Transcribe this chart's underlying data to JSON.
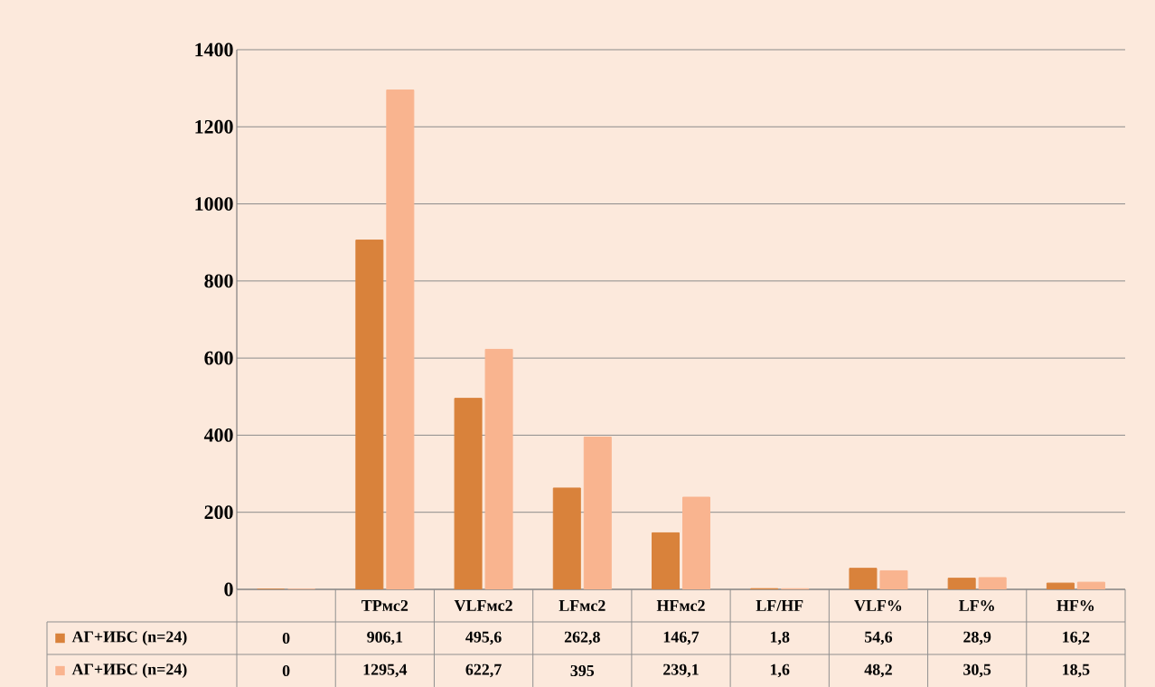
{
  "chart_data": {
    "type": "bar",
    "categories": [
      null,
      "TPмс2",
      "VLFмс2",
      "LFмс2",
      "HFмс2",
      "LF/HF",
      "VLF%",
      "LF%",
      "HF%"
    ],
    "series": [
      {
        "name": "АГ+ИБС (n=24)",
        "color": "#d9823b",
        "values": [
          0,
          906.1,
          495.6,
          262.8,
          146.7,
          1.8,
          54.6,
          28.9,
          16.2
        ],
        "value_labels": [
          "0",
          "906,1",
          "495,6",
          "262,8",
          "146,7",
          "1,8",
          "54,6",
          "28,9",
          "16,2"
        ]
      },
      {
        "name": "АГ+ИБС (n=24)",
        "color": "#f9b48f",
        "values": [
          0,
          1295.4,
          622.7,
          395,
          239.1,
          1.6,
          48.2,
          30.5,
          18.5
        ],
        "value_labels": [
          "0",
          "1295,4",
          "622,7",
          "395",
          "239,1",
          "1,6",
          "48,2",
          "30,5",
          "18,5"
        ]
      }
    ],
    "ylim": [
      0,
      1400
    ],
    "yticks": [
      0,
      200,
      400,
      600,
      800,
      1000,
      1200,
      1400
    ],
    "grid": "y",
    "legend": "bottom"
  }
}
